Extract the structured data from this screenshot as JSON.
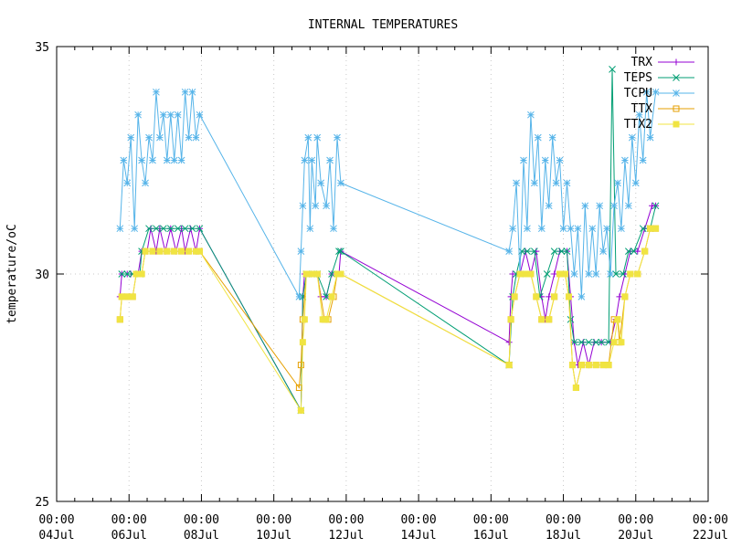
{
  "chart_data": {
    "type": "line",
    "title": "INTERNAL TEMPERATURES",
    "xlabel": "",
    "ylabel": "temperature/oC",
    "x_range_days": [
      4,
      22
    ],
    "ylim": [
      25,
      35
    ],
    "y_ticks": [
      25,
      30,
      35
    ],
    "x_ticks": [
      {
        "day": 4,
        "time": "00:00",
        "date": "04Jul"
      },
      {
        "day": 6,
        "time": "00:00",
        "date": "06Jul"
      },
      {
        "day": 8,
        "time": "00:00",
        "date": "08Jul"
      },
      {
        "day": 10,
        "time": "00:00",
        "date": "10Jul"
      },
      {
        "day": 12,
        "time": "00:00",
        "date": "12Jul"
      },
      {
        "day": 14,
        "time": "00:00",
        "date": "14Jul"
      },
      {
        "day": 16,
        "time": "00:00",
        "date": "16Jul"
      },
      {
        "day": 18,
        "time": "00:00",
        "date": "18Jul"
      },
      {
        "day": 20,
        "time": "00:00",
        "date": "20Jul"
      },
      {
        "day": 22,
        "time": "00:00",
        "date": "22Jul"
      }
    ],
    "grid": true,
    "legend_position": "top-right",
    "series": [
      {
        "name": "TRX",
        "color": "#9400d3",
        "marker": "plus",
        "points": [
          [
            5.75,
            29.5
          ],
          [
            5.8,
            30.0
          ],
          [
            5.95,
            30.0
          ],
          [
            6.05,
            30.0
          ],
          [
            6.25,
            30.0
          ],
          [
            6.35,
            30.5
          ],
          [
            6.5,
            30.5
          ],
          [
            6.6,
            31.0
          ],
          [
            6.75,
            30.5
          ],
          [
            6.85,
            31.0
          ],
          [
            7.0,
            30.5
          ],
          [
            7.15,
            31.0
          ],
          [
            7.3,
            30.5
          ],
          [
            7.45,
            31.0
          ],
          [
            7.55,
            30.5
          ],
          [
            7.7,
            31.0
          ],
          [
            7.85,
            30.5
          ],
          [
            7.95,
            31.0
          ],
          [
            10.75,
            27.0
          ],
          [
            10.8,
            29.5
          ],
          [
            10.85,
            30.0
          ],
          [
            11.0,
            30.0
          ],
          [
            11.2,
            30.0
          ],
          [
            11.3,
            29.5
          ],
          [
            11.45,
            29.5
          ],
          [
            11.6,
            30.0
          ],
          [
            11.8,
            30.0
          ],
          [
            11.85,
            30.5
          ],
          [
            16.5,
            28.5
          ],
          [
            16.55,
            29.5
          ],
          [
            16.6,
            30.0
          ],
          [
            16.8,
            30.0
          ],
          [
            16.95,
            30.5
          ],
          [
            17.1,
            30.0
          ],
          [
            17.25,
            30.5
          ],
          [
            17.4,
            29.5
          ],
          [
            17.5,
            29.0
          ],
          [
            17.6,
            29.5
          ],
          [
            17.75,
            30.0
          ],
          [
            17.9,
            30.5
          ],
          [
            18.1,
            30.5
          ],
          [
            18.2,
            29.5
          ],
          [
            18.3,
            28.5
          ],
          [
            18.4,
            28.0
          ],
          [
            18.55,
            28.5
          ],
          [
            18.7,
            28.0
          ],
          [
            18.85,
            28.5
          ],
          [
            19.05,
            28.5
          ],
          [
            19.3,
            28.5
          ],
          [
            19.45,
            29.0
          ],
          [
            19.55,
            29.5
          ],
          [
            19.7,
            30.0
          ],
          [
            19.85,
            30.5
          ],
          [
            20.05,
            30.5
          ],
          [
            20.25,
            31.0
          ],
          [
            20.45,
            31.5
          ],
          [
            20.55,
            31.5
          ]
        ]
      },
      {
        "name": "TEPS",
        "color": "#009e73",
        "marker": "cross",
        "points": [
          [
            5.8,
            30.0
          ],
          [
            5.95,
            30.0
          ],
          [
            6.1,
            30.0
          ],
          [
            6.3,
            30.0
          ],
          [
            6.35,
            30.5
          ],
          [
            6.55,
            31.0
          ],
          [
            6.75,
            31.0
          ],
          [
            6.95,
            31.0
          ],
          [
            7.15,
            31.0
          ],
          [
            7.35,
            31.0
          ],
          [
            7.55,
            31.0
          ],
          [
            7.75,
            31.0
          ],
          [
            7.95,
            31.0
          ],
          [
            10.75,
            27.0
          ],
          [
            10.8,
            29.5
          ],
          [
            10.9,
            30.0
          ],
          [
            11.1,
            30.0
          ],
          [
            11.2,
            30.0
          ],
          [
            11.45,
            29.5
          ],
          [
            11.6,
            30.0
          ],
          [
            11.8,
            30.5
          ],
          [
            11.85,
            30.5
          ],
          [
            16.5,
            28.0
          ],
          [
            16.6,
            29.5
          ],
          [
            16.7,
            30.0
          ],
          [
            16.85,
            30.5
          ],
          [
            17.0,
            30.5
          ],
          [
            17.2,
            30.5
          ],
          [
            17.35,
            29.5
          ],
          [
            17.55,
            30.0
          ],
          [
            17.75,
            30.5
          ],
          [
            17.95,
            30.5
          ],
          [
            18.1,
            30.5
          ],
          [
            18.2,
            29.0
          ],
          [
            18.3,
            28.5
          ],
          [
            18.5,
            28.5
          ],
          [
            18.7,
            28.5
          ],
          [
            18.9,
            28.5
          ],
          [
            19.05,
            28.5
          ],
          [
            19.25,
            28.5
          ],
          [
            19.35,
            34.5
          ],
          [
            19.45,
            30.0
          ],
          [
            19.65,
            30.0
          ],
          [
            19.8,
            30.5
          ],
          [
            19.95,
            30.5
          ],
          [
            20.2,
            31.0
          ],
          [
            20.4,
            31.0
          ],
          [
            20.55,
            31.5
          ]
        ]
      },
      {
        "name": "TCPU",
        "color": "#56b4e9",
        "marker": "star",
        "points": [
          [
            5.75,
            31.0
          ],
          [
            5.85,
            32.5
          ],
          [
            5.95,
            32.0
          ],
          [
            6.05,
            33.0
          ],
          [
            6.15,
            31.0
          ],
          [
            6.25,
            33.5
          ],
          [
            6.35,
            32.5
          ],
          [
            6.45,
            32.0
          ],
          [
            6.55,
            33.0
          ],
          [
            6.65,
            32.5
          ],
          [
            6.75,
            34.0
          ],
          [
            6.85,
            33.0
          ],
          [
            6.95,
            33.5
          ],
          [
            7.05,
            32.5
          ],
          [
            7.15,
            33.5
          ],
          [
            7.25,
            32.5
          ],
          [
            7.35,
            33.5
          ],
          [
            7.45,
            32.5
          ],
          [
            7.55,
            34.0
          ],
          [
            7.65,
            33.0
          ],
          [
            7.75,
            34.0
          ],
          [
            7.85,
            33.0
          ],
          [
            7.95,
            33.5
          ],
          [
            10.7,
            29.5
          ],
          [
            10.75,
            30.5
          ],
          [
            10.8,
            31.5
          ],
          [
            10.85,
            32.5
          ],
          [
            10.95,
            33.0
          ],
          [
            11.0,
            31.0
          ],
          [
            11.05,
            32.5
          ],
          [
            11.15,
            31.5
          ],
          [
            11.2,
            33.0
          ],
          [
            11.3,
            32.0
          ],
          [
            11.45,
            31.5
          ],
          [
            11.55,
            32.5
          ],
          [
            11.65,
            31.0
          ],
          [
            11.75,
            33.0
          ],
          [
            11.85,
            32.0
          ],
          [
            16.5,
            30.5
          ],
          [
            16.6,
            31.0
          ],
          [
            16.7,
            32.0
          ],
          [
            16.8,
            30.0
          ],
          [
            16.9,
            32.5
          ],
          [
            17.0,
            31.0
          ],
          [
            17.1,
            33.5
          ],
          [
            17.2,
            32.0
          ],
          [
            17.3,
            33.0
          ],
          [
            17.4,
            31.0
          ],
          [
            17.5,
            32.5
          ],
          [
            17.6,
            31.5
          ],
          [
            17.7,
            33.0
          ],
          [
            17.8,
            32.0
          ],
          [
            17.9,
            32.5
          ],
          [
            18.0,
            31.0
          ],
          [
            18.1,
            32.0
          ],
          [
            18.2,
            31.0
          ],
          [
            18.3,
            30.0
          ],
          [
            18.4,
            31.0
          ],
          [
            18.5,
            29.5
          ],
          [
            18.6,
            31.5
          ],
          [
            18.7,
            30.0
          ],
          [
            18.8,
            31.0
          ],
          [
            18.9,
            30.0
          ],
          [
            19.0,
            31.5
          ],
          [
            19.1,
            30.5
          ],
          [
            19.2,
            31.0
          ],
          [
            19.3,
            30.0
          ],
          [
            19.4,
            31.5
          ],
          [
            19.5,
            32.0
          ],
          [
            19.6,
            31.0
          ],
          [
            19.7,
            32.5
          ],
          [
            19.8,
            31.5
          ],
          [
            19.9,
            33.0
          ],
          [
            20.0,
            32.0
          ],
          [
            20.1,
            33.5
          ],
          [
            20.2,
            32.5
          ],
          [
            20.3,
            34.0
          ],
          [
            20.4,
            33.0
          ],
          [
            20.55,
            34.0
          ]
        ]
      },
      {
        "name": "TTX",
        "color": "#e69f00",
        "marker": "square-open",
        "points": [
          [
            5.75,
            29.0
          ],
          [
            5.8,
            29.5
          ],
          [
            5.95,
            29.5
          ],
          [
            6.1,
            29.5
          ],
          [
            6.2,
            30.0
          ],
          [
            6.35,
            30.0
          ],
          [
            6.45,
            30.5
          ],
          [
            6.65,
            30.5
          ],
          [
            6.85,
            30.5
          ],
          [
            7.05,
            30.5
          ],
          [
            7.25,
            30.5
          ],
          [
            7.45,
            30.5
          ],
          [
            7.65,
            30.5
          ],
          [
            7.85,
            30.5
          ],
          [
            7.95,
            30.5
          ],
          [
            10.7,
            27.5
          ],
          [
            10.75,
            28.0
          ],
          [
            10.8,
            29.0
          ],
          [
            10.9,
            30.0
          ],
          [
            11.05,
            30.0
          ],
          [
            11.2,
            30.0
          ],
          [
            11.4,
            29.0
          ],
          [
            11.5,
            29.0
          ],
          [
            11.65,
            29.5
          ],
          [
            11.75,
            30.0
          ],
          [
            11.85,
            30.0
          ],
          [
            16.5,
            28.0
          ],
          [
            16.55,
            29.0
          ],
          [
            16.65,
            29.5
          ],
          [
            16.8,
            30.0
          ],
          [
            16.95,
            30.0
          ],
          [
            17.1,
            30.0
          ],
          [
            17.25,
            29.5
          ],
          [
            17.4,
            29.0
          ],
          [
            17.6,
            29.0
          ],
          [
            17.75,
            29.5
          ],
          [
            17.9,
            30.0
          ],
          [
            18.05,
            30.0
          ],
          [
            18.15,
            29.5
          ],
          [
            18.25,
            28.0
          ],
          [
            18.35,
            27.5
          ],
          [
            18.5,
            28.0
          ],
          [
            18.7,
            28.0
          ],
          [
            18.9,
            28.0
          ],
          [
            19.1,
            28.0
          ],
          [
            19.25,
            28.0
          ],
          [
            19.4,
            29.0
          ],
          [
            19.5,
            29.0
          ],
          [
            19.55,
            28.5
          ],
          [
            19.7,
            29.5
          ],
          [
            19.85,
            30.0
          ],
          [
            20.05,
            30.0
          ],
          [
            20.25,
            30.5
          ],
          [
            20.4,
            31.0
          ],
          [
            20.55,
            31.0
          ]
        ]
      },
      {
        "name": "TTX2",
        "color": "#f0e442",
        "marker": "square-filled",
        "points": [
          [
            5.75,
            29.0
          ],
          [
            5.8,
            29.5
          ],
          [
            5.95,
            29.5
          ],
          [
            6.1,
            29.5
          ],
          [
            6.2,
            30.0
          ],
          [
            6.35,
            30.0
          ],
          [
            6.45,
            30.5
          ],
          [
            6.65,
            30.5
          ],
          [
            6.85,
            30.5
          ],
          [
            7.05,
            30.5
          ],
          [
            7.25,
            30.5
          ],
          [
            7.45,
            30.5
          ],
          [
            7.65,
            30.5
          ],
          [
            7.85,
            30.5
          ],
          [
            7.95,
            30.5
          ],
          [
            10.75,
            27.0
          ],
          [
            10.8,
            28.5
          ],
          [
            10.85,
            29.0
          ],
          [
            10.9,
            30.0
          ],
          [
            11.05,
            30.0
          ],
          [
            11.2,
            30.0
          ],
          [
            11.35,
            29.0
          ],
          [
            11.45,
            29.0
          ],
          [
            11.6,
            29.5
          ],
          [
            11.75,
            30.0
          ],
          [
            11.85,
            30.0
          ],
          [
            16.5,
            28.0
          ],
          [
            16.55,
            29.0
          ],
          [
            16.65,
            29.5
          ],
          [
            16.8,
            30.0
          ],
          [
            16.95,
            30.0
          ],
          [
            17.1,
            30.0
          ],
          [
            17.25,
            29.5
          ],
          [
            17.4,
            29.0
          ],
          [
            17.6,
            29.0
          ],
          [
            17.75,
            29.5
          ],
          [
            17.9,
            30.0
          ],
          [
            18.05,
            30.0
          ],
          [
            18.15,
            29.5
          ],
          [
            18.25,
            28.0
          ],
          [
            18.35,
            27.5
          ],
          [
            18.5,
            28.0
          ],
          [
            18.7,
            28.0
          ],
          [
            18.9,
            28.0
          ],
          [
            19.1,
            28.0
          ],
          [
            19.25,
            28.0
          ],
          [
            19.4,
            28.5
          ],
          [
            19.5,
            29.0
          ],
          [
            19.6,
            28.5
          ],
          [
            19.7,
            29.5
          ],
          [
            19.85,
            30.0
          ],
          [
            20.05,
            30.0
          ],
          [
            20.25,
            30.5
          ],
          [
            20.4,
            31.0
          ],
          [
            20.55,
            31.0
          ]
        ]
      }
    ]
  }
}
